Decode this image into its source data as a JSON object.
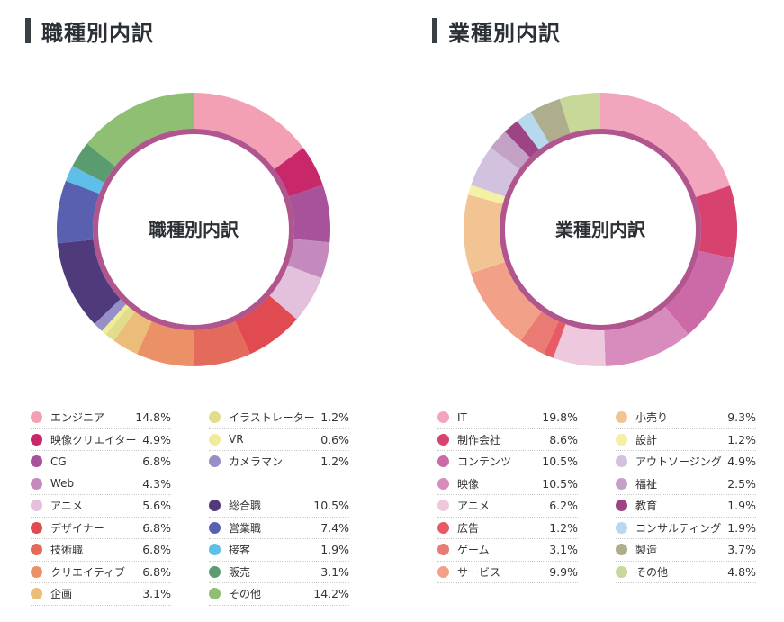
{
  "chart_data": [
    {
      "type": "pie",
      "title": "職種別内訳",
      "center_label": "職種別内訳",
      "unit": "%",
      "categories": [
        "エンジニア",
        "映像クリエイター",
        "CG",
        "Web",
        "アニメ",
        "デザイナー",
        "技術職",
        "クリエイティブ",
        "企画",
        "イラストレーター",
        "VR",
        "カメラマン",
        "総合職",
        "営業職",
        "接客",
        "販売",
        "その他"
      ],
      "values": [
        14.8,
        4.9,
        6.8,
        4.3,
        5.6,
        6.8,
        6.8,
        6.8,
        3.1,
        1.2,
        0.6,
        1.2,
        10.5,
        7.4,
        1.9,
        3.1,
        14.2
      ],
      "value_labels": [
        "14.8%",
        "4.9%",
        "6.8%",
        "4.3%",
        "5.6%",
        "6.8%",
        "6.8%",
        "6.8%",
        "3.1%",
        "1.2%",
        "0.6%",
        "1.2%",
        "10.5%",
        "7.4%",
        "1.9%",
        "3.1%",
        "14.2%"
      ],
      "colors": [
        "#f4a0b4",
        "#c8286a",
        "#a8529c",
        "#c58abd",
        "#e3c1dd",
        "#e04a50",
        "#e46a5c",
        "#ec9068",
        "#ecbd78",
        "#e0de8a",
        "#f0ec98",
        "#9590c8",
        "#4f3a7c",
        "#5a60b0",
        "#5ec0e8",
        "#5a9c70",
        "#8ebf72"
      ],
      "legend_columns": [
        [
          0,
          1,
          2,
          3,
          4,
          5,
          6,
          7,
          8
        ],
        [
          9,
          10,
          11,
          null,
          12,
          13,
          14,
          15,
          16
        ]
      ]
    },
    {
      "type": "pie",
      "title": "業種別内訳",
      "center_label": "業種別内訳",
      "unit": "%",
      "categories": [
        "IT",
        "制作会社",
        "コンテンツ",
        "映像",
        "アニメ",
        "広告",
        "ゲーム",
        "サービス",
        "小売り",
        "設計",
        "アウトソージング",
        "福祉",
        "教育",
        "コンサルティング",
        "製造",
        "その他"
      ],
      "values": [
        19.8,
        8.6,
        10.5,
        10.5,
        6.2,
        1.2,
        3.1,
        9.9,
        9.3,
        1.2,
        4.9,
        2.5,
        1.9,
        1.9,
        3.7,
        4.8
      ],
      "value_labels": [
        "19.8%",
        "8.6%",
        "10.5%",
        "10.5%",
        "6.2%",
        "1.2%",
        "3.1%",
        "9.9%",
        "9.3%",
        "1.2%",
        "4.9%",
        "2.5%",
        "1.9%",
        "1.9%",
        "3.7%",
        "4.8%"
      ],
      "colors": [
        "#f2a6be",
        "#d8426e",
        "#cc6aa8",
        "#d88cbe",
        "#eec8dc",
        "#e85a64",
        "#ea7a74",
        "#f2a088",
        "#f2c494",
        "#f4f0a4",
        "#d2c2e0",
        "#c4a2c8",
        "#9c4484",
        "#b8d8ee",
        "#aeae8c",
        "#c8d898"
      ],
      "legend_columns": [
        [
          0,
          1,
          2,
          3,
          4,
          5,
          6,
          7
        ],
        [
          8,
          9,
          10,
          11,
          12,
          13,
          14,
          15
        ]
      ]
    }
  ],
  "ring_color": "#b0558e"
}
